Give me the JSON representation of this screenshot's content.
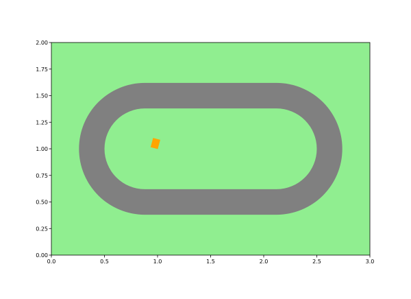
{
  "colors": {
    "background": "#ffffff",
    "field": "#90ee90",
    "track": "#808080",
    "car": "#ffa500",
    "axis": "#000000"
  },
  "axes": {
    "xlim": [
      0,
      3
    ],
    "ylim": [
      0,
      2
    ],
    "x_ticks": [
      {
        "value": 0.0,
        "label": "0.0"
      },
      {
        "value": 0.5,
        "label": "0.5"
      },
      {
        "value": 1.0,
        "label": "1.0"
      },
      {
        "value": 1.5,
        "label": "1.5"
      },
      {
        "value": 2.0,
        "label": "2.0"
      },
      {
        "value": 2.5,
        "label": "2.5"
      },
      {
        "value": 3.0,
        "label": "3.0"
      }
    ],
    "y_ticks": [
      {
        "value": 0.0,
        "label": "0.00"
      },
      {
        "value": 0.25,
        "label": "0.25"
      },
      {
        "value": 0.5,
        "label": "0.50"
      },
      {
        "value": 0.75,
        "label": "0.75"
      },
      {
        "value": 1.0,
        "label": "1.00"
      },
      {
        "value": 1.25,
        "label": "1.25"
      },
      {
        "value": 1.5,
        "label": "1.50"
      },
      {
        "value": 1.75,
        "label": "1.75"
      },
      {
        "value": 2.0,
        "label": "2.00"
      }
    ]
  },
  "track": {
    "straight_x": [
      0.88,
      2.12
    ],
    "center_y": 1.0,
    "outer_half_height": 0.62,
    "inner_half_height": 0.38,
    "shape": "stadium oval"
  },
  "car": {
    "x": 0.98,
    "y": 1.05,
    "length": 0.09,
    "width": 0.07,
    "heading_deg": 75
  }
}
